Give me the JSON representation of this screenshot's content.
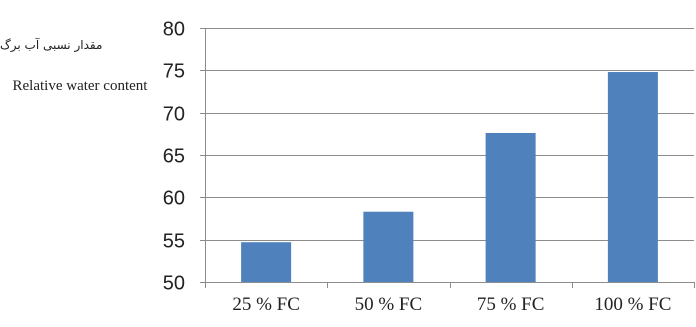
{
  "chart_data": {
    "type": "bar",
    "title": "",
    "ylabel_fa": "مقدار نسبی آب برگ",
    "ylabel_en": "Relative water content",
    "xlabel": "",
    "categories": [
      "25 % FC",
      "50 % FC",
      "75 % FC",
      "100 % FC"
    ],
    "values": [
      54.7,
      58.3,
      67.6,
      74.8
    ],
    "ylim": [
      50,
      80
    ],
    "yticks": [
      50,
      55,
      60,
      65,
      70,
      75,
      80
    ],
    "grid": true,
    "legend": "none",
    "bar_color": "#4f81bd",
    "grid_color": "#8c8c8c"
  }
}
